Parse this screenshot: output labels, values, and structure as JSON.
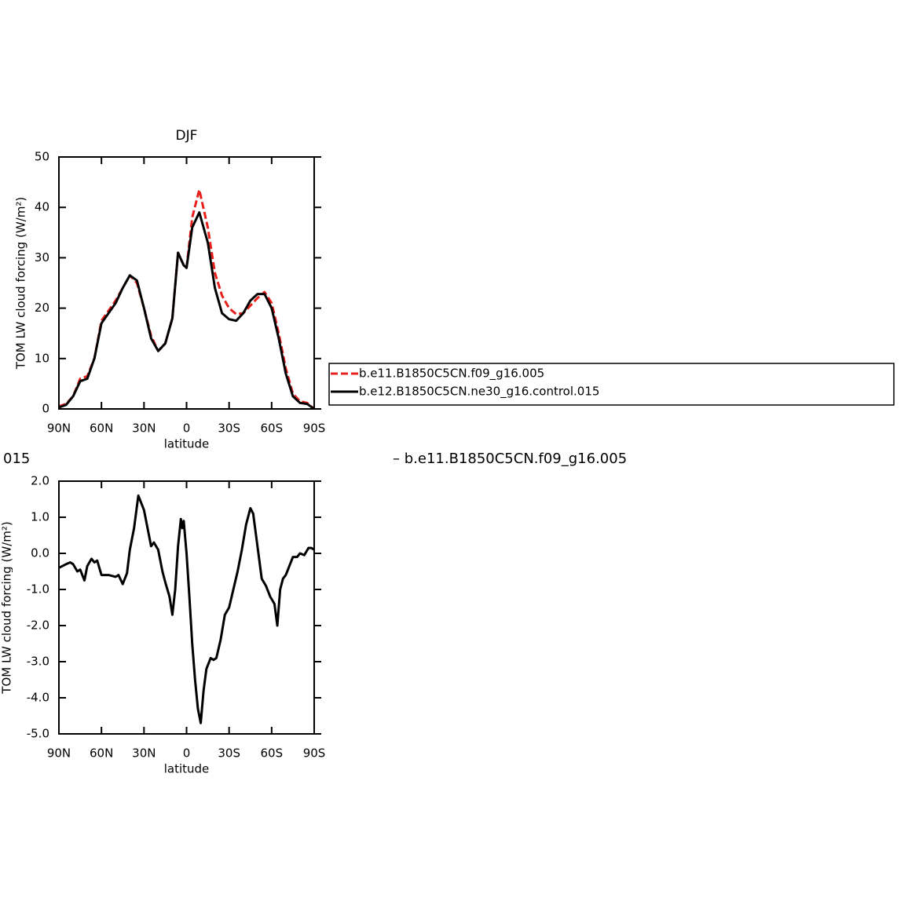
{
  "chart_data": [
    {
      "type": "line",
      "title": "DJF",
      "xlabel": "latitude",
      "ylabel": "TOM LW cloud forcing (W/m²)",
      "x": [
        90,
        85,
        80,
        75,
        70,
        65,
        60,
        55,
        50,
        45,
        40,
        35,
        30,
        25,
        20,
        15,
        10,
        6,
        2,
        0,
        -4,
        -9,
        -15,
        -20,
        -25,
        -30,
        -35,
        -40,
        -45,
        -50,
        -55,
        -60,
        -65,
        -70,
        -75,
        -80,
        -85,
        -90
      ],
      "series": [
        {
          "name": "b.e11.B1850C5CN.f09_g16.005",
          "color": "#e8201c",
          "dash": true,
          "values": [
            0.5,
            1,
            2.5,
            6,
            6.5,
            10,
            17.5,
            19.5,
            21.5,
            24,
            26.5,
            25,
            20,
            14.5,
            11.5,
            13,
            18,
            31,
            28.5,
            28,
            38,
            43.5,
            36,
            27,
            22.5,
            20,
            18.8,
            19,
            20.5,
            22,
            23.2,
            21,
            15,
            8,
            3,
            1.5,
            1.2,
            0
          ]
        },
        {
          "name": "b.e12.B1850C5CN.ne30_g16.control.015",
          "color": "#000000",
          "dash": false,
          "values": [
            0.3,
            0.8,
            2.5,
            5.5,
            6,
            10,
            17,
            19,
            21,
            24,
            26.5,
            25.5,
            20,
            14,
            11.5,
            13,
            18,
            31,
            28.5,
            28,
            36,
            39,
            33,
            24,
            19,
            17.8,
            17.5,
            19,
            21.5,
            22.8,
            22.8,
            20,
            14,
            7,
            2.5,
            1.2,
            1,
            0
          ]
        }
      ],
      "xlim": [
        90,
        -90
      ],
      "xticks": [
        {
          "value": 90,
          "label": "90N"
        },
        {
          "value": 60,
          "label": "60N"
        },
        {
          "value": 30,
          "label": "30N"
        },
        0,
        {
          "value": -30,
          "label": "30S"
        },
        {
          "value": -60,
          "label": "60S"
        },
        {
          "value": -90,
          "label": "90S"
        }
      ],
      "ylim": [
        0,
        50
      ],
      "yticks": [
        0,
        10,
        20,
        30,
        40,
        50
      ],
      "legend": "right"
    },
    {
      "type": "line",
      "title_fragments": [
        "015",
        "– b.e11.B1850C5CN.f09_g16.005"
      ],
      "xlabel": "latitude",
      "ylabel": "TOM LW cloud forcing (W/m²)",
      "x": [
        90,
        85,
        82,
        80,
        77,
        75,
        72,
        70,
        67,
        65,
        63,
        60,
        55,
        50,
        48,
        45,
        42,
        40,
        37,
        34,
        30,
        27,
        25,
        23,
        20,
        17,
        15,
        12,
        10,
        8,
        6,
        4,
        3,
        2,
        0,
        -2,
        -4,
        -6,
        -8,
        -10,
        -12,
        -14,
        -17,
        -19,
        -21,
        -24,
        -27,
        -30,
        -33,
        -36,
        -39,
        -42,
        -45,
        -47,
        -50,
        -53,
        -56,
        -59,
        -62,
        -64,
        -66,
        -68,
        -70,
        -73,
        -75,
        -78,
        -80,
        -83,
        -86,
        -88,
        -90
      ],
      "series": [
        {
          "color": "#000000",
          "values": [
            -0.4,
            -0.3,
            -0.25,
            -0.3,
            -0.5,
            -0.45,
            -0.75,
            -0.35,
            -0.15,
            -0.25,
            -0.2,
            -0.6,
            -0.6,
            -0.65,
            -0.6,
            -0.85,
            -0.55,
            0.1,
            0.7,
            1.6,
            1.2,
            0.6,
            0.2,
            0.3,
            0.1,
            -0.5,
            -0.8,
            -1.2,
            -1.7,
            -1,
            0.2,
            0.95,
            0.7,
            0.9,
            0,
            -1.2,
            -2.5,
            -3.5,
            -4.3,
            -4.7,
            -3.8,
            -3.2,
            -2.9,
            -2.95,
            -2.9,
            -2.4,
            -1.7,
            -1.5,
            -1,
            -0.5,
            0.1,
            0.8,
            1.25,
            1.1,
            0.2,
            -0.7,
            -0.9,
            -1.2,
            -1.4,
            -2,
            -1,
            -0.7,
            -0.6,
            -0.3,
            -0.1,
            -0.1,
            0,
            -0.05,
            0.15,
            0.15,
            0.1
          ]
        }
      ],
      "xlim": [
        90,
        -90
      ],
      "xticks": [
        {
          "value": 90,
          "label": "90N"
        },
        {
          "value": 60,
          "label": "60N"
        },
        {
          "value": 30,
          "label": "30N"
        },
        0,
        {
          "value": -30,
          "label": "30S"
        },
        {
          "value": -60,
          "label": "60S"
        },
        {
          "value": -90,
          "label": "90S"
        }
      ],
      "ylim": [
        -5,
        2
      ],
      "yticks": [
        {
          "value": -5,
          "label": "-5.0"
        },
        {
          "value": -4,
          "label": "-4.0"
        },
        {
          "value": -3,
          "label": "-3.0"
        },
        {
          "value": -2,
          "label": "-2.0"
        },
        {
          "value": -1,
          "label": "-1.0"
        },
        {
          "value": 0,
          "label": "0.0"
        },
        {
          "value": 1,
          "label": "1.0"
        },
        {
          "value": 2,
          "label": "2.0"
        }
      ]
    }
  ]
}
